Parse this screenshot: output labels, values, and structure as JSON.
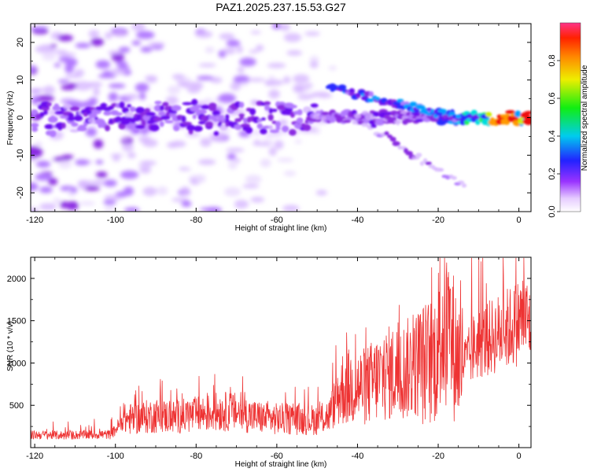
{
  "figure": {
    "title": "PAZ1.2025.237.15.53.G27"
  },
  "colors": {
    "snr_line": "#ee3333",
    "frame": "#000000"
  },
  "chart_data": [
    {
      "type": "heatmap",
      "title": "PAZ1.2025.237.15.53.G27",
      "xlabel": "Height of straight line (km)",
      "ylabel": "Frequency (Hz)",
      "xlim": [
        -121,
        3
      ],
      "ylim": [
        -25,
        25
      ],
      "xticks": [
        -120,
        -100,
        -80,
        -60,
        -40,
        -20,
        0
      ],
      "yticks": [
        -20,
        -10,
        0,
        10,
        20
      ],
      "xtick_labels": [
        "-120",
        "-100",
        "-80",
        "-60",
        "-40",
        "-20",
        "0"
      ],
      "ytick_labels": [
        "-20",
        "-10",
        "0",
        "10",
        "20"
      ],
      "colorbar": {
        "label": "Normalized spectral amplitude",
        "range": [
          0,
          1
        ],
        "ticks": [
          0.0,
          0.2,
          0.4,
          0.6,
          0.8
        ],
        "tick_labels": [
          "0.0",
          "0.2",
          "0.4",
          "0.6",
          "0.8"
        ],
        "colormap": "rainbow (white → violet → blue → cyan → green → yellow → orange → red → pink)"
      },
      "features": [
        {
          "name": "main branch",
          "x_range": [
            -121,
            3
          ],
          "frequency_hz": 0,
          "max_amplitude": 0.95,
          "peak_x": -3
        },
        {
          "name": "upper branch",
          "x_range": [
            -47,
            -15
          ],
          "frequency_hz_start": 8,
          "frequency_hz_end": 0
        },
        {
          "name": "lower branch",
          "x_range": [
            -40,
            -13
          ],
          "frequency_hz_start": 0,
          "frequency_hz_end": -19
        }
      ]
    },
    {
      "type": "line",
      "title": "",
      "xlabel": "Height of straight line (km)",
      "ylabel": "SNR (10 * v/v)",
      "xlim": [
        -121,
        3
      ],
      "ylim": [
        0,
        2250
      ],
      "xticks": [
        -120,
        -100,
        -80,
        -60,
        -40,
        -20,
        0
      ],
      "yticks": [
        500,
        1000,
        1500,
        2000
      ],
      "xtick_labels": [
        "-120",
        "-100",
        "-80",
        "-60",
        "-40",
        "-20",
        "0"
      ],
      "ytick_labels": [
        "500",
        "1000",
        "1500",
        "2000"
      ],
      "series": [
        {
          "name": "SNR",
          "x": [
            -121,
            -117,
            -113,
            -109,
            -105,
            -101,
            -98,
            -94,
            -90,
            -86,
            -82,
            -78,
            -74,
            -70,
            -66,
            -62,
            -58,
            -54,
            -50,
            -47,
            -44,
            -41,
            -38,
            -35,
            -32,
            -29,
            -26,
            -23,
            -21,
            -19,
            -17,
            -15,
            -13,
            -11,
            -9,
            -7,
            -5,
            -3,
            -1,
            1,
            3
          ],
          "values": [
            150,
            150,
            145,
            150,
            155,
            155,
            330,
            350,
            380,
            360,
            380,
            400,
            430,
            420,
            370,
            340,
            340,
            330,
            330,
            380,
            700,
            720,
            720,
            820,
            880,
            900,
            970,
            1000,
            1050,
            1450,
            1300,
            1050,
            1000,
            1200,
            1250,
            1300,
            1350,
            1400,
            1450,
            1550,
            1450
          ]
        }
      ]
    }
  ]
}
